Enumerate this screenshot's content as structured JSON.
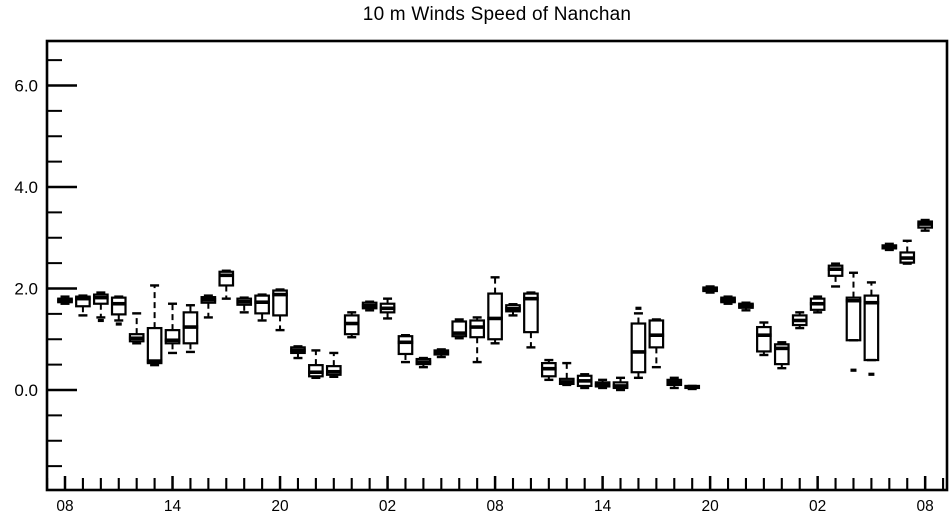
{
  "chart_data": {
    "type": "boxplot",
    "title": "10 m Winds Speed of Nanchan",
    "xlabel": "",
    "ylabel": "",
    "ylim": [
      -2.0,
      6.9
    ],
    "grid": false,
    "legend": "none",
    "yticks_major": [
      0.0,
      2.0,
      4.0,
      6.0
    ],
    "ytick_labels": [
      "0.0",
      "2.0",
      "4.0",
      "6.0"
    ],
    "yminor": {
      "start": -1.5,
      "end": 6.5,
      "step": 0.5
    },
    "xtick_labels": [
      "08",
      "14",
      "20",
      "02",
      "08",
      "14",
      "20",
      "02",
      "08"
    ],
    "xtick_label_every": 6,
    "x_minor_ticks": "hourly",
    "boxes_note": "stats = [min, q1, median, q3, max] in m/s; one box per hour over 48 h",
    "boxes": [
      {
        "hour": "08",
        "stats": [
          1.7,
          1.73,
          1.76,
          1.8,
          1.84
        ],
        "outliers": []
      },
      {
        "hour": "09",
        "stats": [
          1.47,
          1.65,
          1.8,
          1.84,
          1.86
        ],
        "outliers": []
      },
      {
        "hour": "10",
        "stats": [
          1.43,
          1.7,
          1.82,
          1.88,
          1.92
        ],
        "outliers": [
          1.37
        ]
      },
      {
        "hour": "11",
        "stats": [
          1.37,
          1.49,
          1.7,
          1.82,
          1.84
        ],
        "outliers": [
          1.3
        ]
      },
      {
        "hour": "12",
        "stats": [
          0.92,
          0.96,
          1.02,
          1.1,
          1.51
        ],
        "outliers": []
      },
      {
        "hour": "13",
        "stats": [
          0.49,
          0.53,
          0.57,
          1.22,
          2.06
        ],
        "outliers": []
      },
      {
        "hour": "14",
        "stats": [
          0.73,
          0.92,
          0.98,
          1.18,
          1.7
        ],
        "outliers": []
      },
      {
        "hour": "15",
        "stats": [
          0.75,
          0.92,
          1.24,
          1.53,
          1.67
        ],
        "outliers": []
      },
      {
        "hour": "16",
        "stats": [
          1.43,
          1.72,
          1.78,
          1.83,
          1.86
        ],
        "outliers": []
      },
      {
        "hour": "17",
        "stats": [
          1.8,
          2.06,
          2.26,
          2.33,
          2.35
        ],
        "outliers": []
      },
      {
        "hour": "18",
        "stats": [
          1.53,
          1.68,
          1.74,
          1.8,
          1.82
        ],
        "outliers": []
      },
      {
        "hour": "19",
        "stats": [
          1.37,
          1.51,
          1.73,
          1.86,
          1.88
        ],
        "outliers": []
      },
      {
        "hour": "20",
        "stats": [
          1.18,
          1.47,
          1.88,
          1.96,
          1.98
        ],
        "outliers": []
      },
      {
        "hour": "21",
        "stats": [
          0.63,
          0.73,
          0.78,
          0.84,
          0.86
        ],
        "outliers": []
      },
      {
        "hour": "22",
        "stats": [
          0.24,
          0.27,
          0.35,
          0.49,
          0.78
        ],
        "outliers": []
      },
      {
        "hour": "23",
        "stats": [
          0.26,
          0.3,
          0.36,
          0.47,
          0.73
        ],
        "outliers": []
      },
      {
        "hour": "00",
        "stats": [
          1.04,
          1.1,
          1.31,
          1.47,
          1.53
        ],
        "outliers": []
      },
      {
        "hour": "01",
        "stats": [
          1.57,
          1.61,
          1.66,
          1.72,
          1.74
        ],
        "outliers": []
      },
      {
        "hour": "02",
        "stats": [
          1.41,
          1.53,
          1.61,
          1.7,
          1.8
        ],
        "outliers": []
      },
      {
        "hour": "03",
        "stats": [
          0.55,
          0.71,
          0.94,
          1.06,
          1.08
        ],
        "outliers": []
      },
      {
        "hour": "04",
        "stats": [
          0.45,
          0.51,
          0.55,
          0.61,
          0.63
        ],
        "outliers": []
      },
      {
        "hour": "05",
        "stats": [
          0.65,
          0.7,
          0.73,
          0.78,
          0.8
        ],
        "outliers": []
      },
      {
        "hour": "06",
        "stats": [
          1.02,
          1.06,
          1.12,
          1.35,
          1.39
        ],
        "outliers": []
      },
      {
        "hour": "07",
        "stats": [
          0.55,
          1.04,
          1.24,
          1.37,
          1.43
        ],
        "outliers": []
      },
      {
        "hour": "08",
        "stats": [
          0.92,
          1.0,
          1.41,
          1.9,
          2.22
        ],
        "outliers": []
      },
      {
        "hour": "09",
        "stats": [
          1.47,
          1.55,
          1.6,
          1.67,
          1.69
        ],
        "outliers": []
      },
      {
        "hour": "10",
        "stats": [
          0.84,
          1.14,
          1.8,
          1.9,
          1.92
        ],
        "outliers": []
      },
      {
        "hour": "11",
        "stats": [
          0.2,
          0.27,
          0.42,
          0.53,
          0.59
        ],
        "outliers": []
      },
      {
        "hour": "12",
        "stats": [
          0.1,
          0.12,
          0.16,
          0.22,
          0.53
        ],
        "outliers": []
      },
      {
        "hour": "13",
        "stats": [
          0.04,
          0.08,
          0.18,
          0.28,
          0.31
        ],
        "outliers": []
      },
      {
        "hour": "14",
        "stats": [
          0.04,
          0.07,
          0.1,
          0.15,
          0.2
        ],
        "outliers": []
      },
      {
        "hour": "15",
        "stats": [
          0.0,
          0.04,
          0.08,
          0.15,
          0.24
        ],
        "outliers": []
      },
      {
        "hour": "16",
        "stats": [
          0.24,
          0.35,
          0.75,
          1.31,
          1.51
        ],
        "outliers": [
          1.61
        ]
      },
      {
        "hour": "17",
        "stats": [
          0.45,
          0.84,
          1.08,
          1.37,
          1.39
        ],
        "outliers": []
      },
      {
        "hour": "18",
        "stats": [
          0.04,
          0.1,
          0.15,
          0.2,
          0.24
        ],
        "outliers": []
      },
      {
        "hour": "19",
        "stats": [
          0.02,
          0.04,
          0.06,
          0.08,
          0.08
        ],
        "outliers": []
      },
      {
        "hour": "20",
        "stats": [
          1.92,
          1.95,
          1.98,
          2.02,
          2.04
        ],
        "outliers": []
      },
      {
        "hour": "21",
        "stats": [
          1.7,
          1.73,
          1.77,
          1.82,
          1.84
        ],
        "outliers": []
      },
      {
        "hour": "22",
        "stats": [
          1.57,
          1.62,
          1.66,
          1.7,
          1.72
        ],
        "outliers": []
      },
      {
        "hour": "23",
        "stats": [
          0.69,
          0.76,
          1.08,
          1.24,
          1.33
        ],
        "outliers": []
      },
      {
        "hour": "00",
        "stats": [
          0.43,
          0.51,
          0.82,
          0.9,
          0.94
        ],
        "outliers": []
      },
      {
        "hour": "01",
        "stats": [
          1.22,
          1.28,
          1.37,
          1.47,
          1.53
        ],
        "outliers": []
      },
      {
        "hour": "02",
        "stats": [
          1.53,
          1.58,
          1.7,
          1.8,
          1.84
        ],
        "outliers": []
      },
      {
        "hour": "03",
        "stats": [
          2.04,
          2.25,
          2.38,
          2.45,
          2.49
        ],
        "outliers": []
      },
      {
        "hour": "04",
        "stats": [
          0.98,
          0.98,
          1.76,
          1.82,
          2.31
        ],
        "outliers": [
          0.39
        ]
      },
      {
        "hour": "05",
        "stats": [
          0.59,
          0.59,
          1.72,
          1.86,
          2.12
        ],
        "outliers": [
          0.31
        ]
      },
      {
        "hour": "06",
        "stats": [
          2.76,
          2.79,
          2.82,
          2.85,
          2.88
        ],
        "outliers": []
      },
      {
        "hour": "07",
        "stats": [
          2.49,
          2.51,
          2.6,
          2.71,
          2.94
        ],
        "outliers": []
      },
      {
        "hour": "08",
        "stats": [
          3.14,
          3.2,
          3.27,
          3.32,
          3.35
        ],
        "outliers": []
      }
    ]
  },
  "colors": {
    "foreground": "#000000",
    "background": "#ffffff"
  }
}
